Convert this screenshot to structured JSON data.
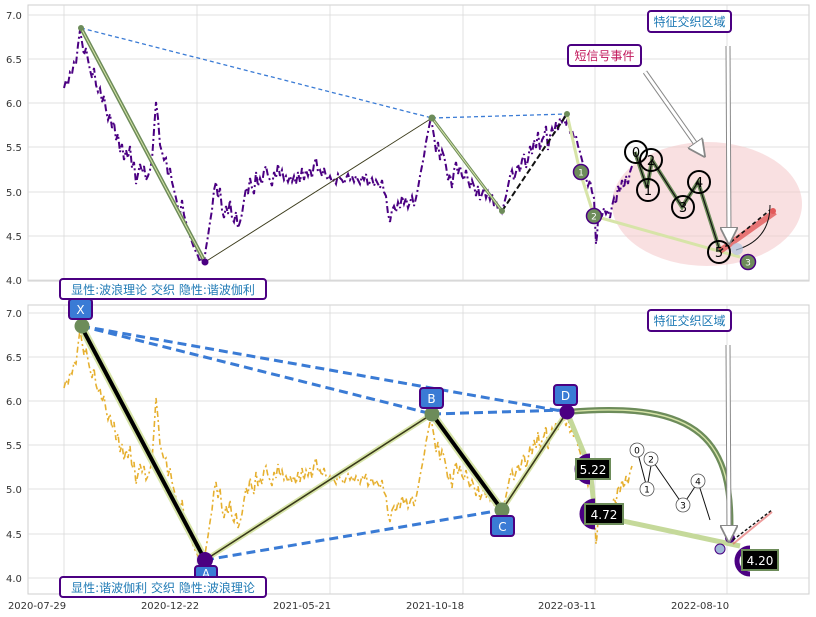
{
  "chart_data": [
    {
      "type": "line",
      "ylim": [
        3.85,
        7.12
      ],
      "yticks": [
        "4.0",
        "4.5",
        "5.0",
        "5.5",
        "6.0",
        "6.5",
        "7.0"
      ],
      "ylabels_text": {
        "t40": "4.0",
        "t45": "4.5",
        "t50": "5.0",
        "t55": "5.5",
        "t60": "6.0",
        "t65": "6.5",
        "t70": "7.0"
      },
      "annotations": {
        "region_label": "特征交织区域",
        "short_signal_label": "短信号事件",
        "bottom_caption": "显性:波浪理论 交织 隐性:谐波伽利"
      },
      "series": [
        {
          "x": [
            "2020-08-15",
            "2020-12-22",
            "2021-10-11",
            "2022-01-08",
            "2022-03-11",
            "2022-08-10"
          ],
          "values": [
            6.85,
            4.2,
            5.85,
            4.78,
            5.88,
            4.35
          ]
        }
      ],
      "elliott_waves": [
        {
          "label": "0",
          "y": 5.45
        },
        {
          "label": "1",
          "y": 5.0
        },
        {
          "label": "2",
          "y": 5.35
        },
        {
          "label": "3",
          "y": 4.83
        },
        {
          "label": "4",
          "y": 5.1
        },
        {
          "label": "5",
          "y": 4.33
        }
      ],
      "small_points": [
        {
          "label": "1",
          "y": 5.22
        },
        {
          "label": "2",
          "y": 4.7
        },
        {
          "label": "3",
          "y": 4.2
        }
      ]
    },
    {
      "type": "line",
      "ylim": [
        3.85,
        7.12
      ],
      "yticks": [
        "4.0",
        "4.5",
        "5.0",
        "5.5",
        "6.0",
        "6.5",
        "7.0"
      ],
      "ylabels_text": {
        "t40": "4.0",
        "t45": "4.5",
        "t50": "5.0",
        "t55": "5.5",
        "t60": "6.0",
        "t65": "6.5",
        "t70": "7.0"
      },
      "xticks": [
        "2020-07-29",
        "2020-12-22",
        "2021-05-21",
        "2021-10-18",
        "2022-03-11",
        "2022-08-10"
      ],
      "xlabels_text": {
        "x1": "2020-07-29",
        "x2": "2020-12-22",
        "x3": "2021-05-21",
        "x4": "2021-10-18",
        "x5": "2022-03-11",
        "x6": "2022-08-10"
      },
      "annotations": {
        "region_label": "特征交织区域",
        "bottom_caption": "显性:谐波伽利 交织 隐性:波浪理论"
      },
      "harmonic_points": [
        {
          "label": "X",
          "x": "2020-08-15",
          "y": 6.85
        },
        {
          "label": "A",
          "x": "2020-12-22",
          "y": 4.2
        },
        {
          "label": "B",
          "x": "2021-10-11",
          "y": 5.85
        },
        {
          "label": "C",
          "x": "2022-01-08",
          "y": 4.78
        },
        {
          "label": "D",
          "x": "2022-03-11",
          "y": 5.88
        }
      ],
      "price_targets": [
        "5.22",
        "4.72",
        "4.20"
      ],
      "elliott_waves": [
        {
          "label": "0",
          "y": 5.45
        },
        {
          "label": "1",
          "y": 5.0
        },
        {
          "label": "2",
          "y": 5.35
        },
        {
          "label": "3",
          "y": 4.83
        },
        {
          "label": "4",
          "y": 5.1
        }
      ]
    }
  ]
}
